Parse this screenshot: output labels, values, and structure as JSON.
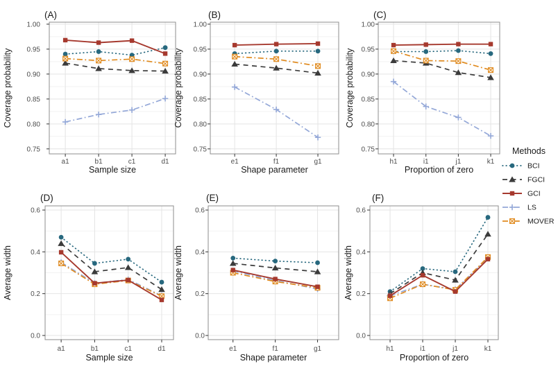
{
  "legend": {
    "title": "Methods",
    "items": [
      {
        "label": "BCI",
        "color": "#27687E",
        "marker": "circle-icon",
        "line": "dot"
      },
      {
        "label": "FGCI",
        "color": "#3B3B3B",
        "marker": "triangle-icon",
        "line": "dash"
      },
      {
        "label": "GCI",
        "color": "#A6392E",
        "marker": "square-icon",
        "line": "solid"
      },
      {
        "label": "LS",
        "color": "#94A8D8",
        "marker": "plus-icon",
        "line": "dashdot"
      },
      {
        "label": "MOVER",
        "color": "#E08A1E",
        "marker": "square-x-icon",
        "line": "dashdot"
      }
    ]
  },
  "chart_data": [
    {
      "type": "line",
      "panel": "(A)",
      "xlabel": "Sample size",
      "ylabel": "Coverage probability",
      "categories": [
        "a1",
        "b1",
        "c1",
        "d1"
      ],
      "yticks": [
        "1.00",
        "0.95",
        "0.90",
        "0.85",
        "0.80",
        "0.75"
      ],
      "ylim": [
        0.74,
        1.004
      ],
      "grid": true,
      "legend_position": "right-of-figure",
      "series": [
        {
          "name": "BCI",
          "values": [
            0.94,
            0.945,
            0.938,
            0.953
          ]
        },
        {
          "name": "FGCI",
          "values": [
            0.922,
            0.911,
            0.907,
            0.906
          ]
        },
        {
          "name": "GCI",
          "values": [
            0.968,
            0.963,
            0.967,
            0.941
          ]
        },
        {
          "name": "LS",
          "values": [
            0.804,
            0.819,
            0.828,
            0.851
          ]
        },
        {
          "name": "MOVER",
          "values": [
            0.931,
            0.927,
            0.93,
            0.921
          ]
        }
      ]
    },
    {
      "type": "line",
      "panel": "(B)",
      "xlabel": "Shape parameter",
      "ylabel": "Coverage probability",
      "categories": [
        "e1",
        "f1",
        "g1"
      ],
      "yticks": [
        "1.00",
        "0.95",
        "0.90",
        "0.85",
        "0.80",
        "0.75"
      ],
      "ylim": [
        0.74,
        1.004
      ],
      "grid": true,
      "series": [
        {
          "name": "BCI",
          "values": [
            0.941,
            0.946,
            0.946
          ]
        },
        {
          "name": "FGCI",
          "values": [
            0.92,
            0.912,
            0.902
          ]
        },
        {
          "name": "GCI",
          "values": [
            0.958,
            0.96,
            0.961
          ]
        },
        {
          "name": "LS",
          "values": [
            0.874,
            0.829,
            0.773
          ]
        },
        {
          "name": "MOVER",
          "values": [
            0.935,
            0.93,
            0.916
          ]
        }
      ]
    },
    {
      "type": "line",
      "panel": "(C)",
      "xlabel": "Proportion of zero",
      "ylabel": "Coverage probability",
      "categories": [
        "h1",
        "i1",
        "j1",
        "k1"
      ],
      "yticks": [
        "1.00",
        "0.95",
        "0.90",
        "0.85",
        "0.80",
        "0.75"
      ],
      "ylim": [
        0.74,
        1.004
      ],
      "grid": true,
      "series": [
        {
          "name": "BCI",
          "values": [
            0.945,
            0.945,
            0.947,
            0.941
          ]
        },
        {
          "name": "FGCI",
          "values": [
            0.927,
            0.922,
            0.903,
            0.893
          ]
        },
        {
          "name": "GCI",
          "values": [
            0.958,
            0.959,
            0.96,
            0.96
          ]
        },
        {
          "name": "LS",
          "values": [
            0.885,
            0.835,
            0.813,
            0.776
          ]
        },
        {
          "name": "MOVER",
          "values": [
            0.946,
            0.927,
            0.926,
            0.908
          ]
        }
      ]
    },
    {
      "type": "line",
      "panel": "(D)",
      "xlabel": "Sample size",
      "ylabel": "Average width",
      "categories": [
        "a1",
        "b1",
        "c1",
        "d1"
      ],
      "yticks": [
        "0.6",
        "0.4",
        "0.2",
        "0.0"
      ],
      "ylim": [
        -0.02,
        0.62
      ],
      "grid": true,
      "series": [
        {
          "name": "BCI",
          "values": [
            0.47,
            0.345,
            0.365,
            0.255
          ]
        },
        {
          "name": "FGCI",
          "values": [
            0.44,
            0.305,
            0.325,
            0.22
          ]
        },
        {
          "name": "GCI",
          "values": [
            0.398,
            0.25,
            0.265,
            0.17
          ]
        },
        {
          "name": "LS",
          "values": [
            0.35,
            0.25,
            0.268,
            0.19
          ]
        },
        {
          "name": "MOVER",
          "values": [
            0.345,
            0.245,
            0.263,
            0.188
          ]
        }
      ]
    },
    {
      "type": "line",
      "panel": "(E)",
      "xlabel": "Shape parameter",
      "ylabel": "Average width",
      "categories": [
        "e1",
        "f1",
        "g1"
      ],
      "yticks": [
        "0.6",
        "0.4",
        "0.2",
        "0.0"
      ],
      "ylim": [
        -0.02,
        0.62
      ],
      "grid": true,
      "series": [
        {
          "name": "BCI",
          "values": [
            0.37,
            0.356,
            0.348
          ]
        },
        {
          "name": "FGCI",
          "values": [
            0.345,
            0.323,
            0.305
          ]
        },
        {
          "name": "GCI",
          "values": [
            0.313,
            0.27,
            0.233
          ]
        },
        {
          "name": "LS",
          "values": [
            0.308,
            0.263,
            0.222
          ]
        },
        {
          "name": "MOVER",
          "values": [
            0.3,
            0.258,
            0.228
          ]
        }
      ]
    },
    {
      "type": "line",
      "panel": "(F)",
      "xlabel": "Proportion of zero",
      "ylabel": "Average width",
      "categories": [
        "h1",
        "i1",
        "j1",
        "k1"
      ],
      "yticks": [
        "0.6",
        "0.4",
        "0.2",
        "0.0"
      ],
      "ylim": [
        -0.02,
        0.62
      ],
      "grid": true,
      "series": [
        {
          "name": "BCI",
          "values": [
            0.21,
            0.32,
            0.305,
            0.565
          ]
        },
        {
          "name": "FGCI",
          "values": [
            0.2,
            0.3,
            0.265,
            0.485
          ]
        },
        {
          "name": "GCI",
          "values": [
            0.19,
            0.288,
            0.21,
            0.365
          ]
        },
        {
          "name": "LS",
          "values": [
            0.19,
            0.245,
            0.22,
            0.37
          ]
        },
        {
          "name": "MOVER",
          "values": [
            0.178,
            0.245,
            0.218,
            0.375
          ]
        }
      ]
    }
  ],
  "style": {
    "grid_major_color": "#E4E4E4",
    "grid_minor_color": "#F2F2F2",
    "panel_border_color": "#8E8E8E",
    "tick_color": "#333333",
    "tick_text_color": "#4D4D4D",
    "title_text_color": "#1A1A1A"
  }
}
